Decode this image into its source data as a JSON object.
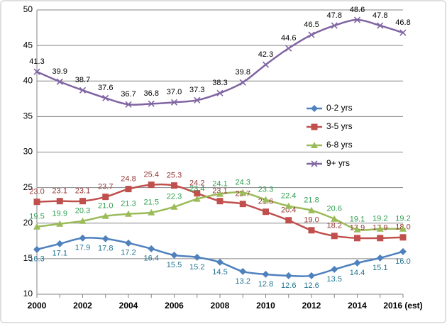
{
  "chart_data": {
    "type": "line",
    "categories": [
      "2000",
      null,
      "2002",
      null,
      "2004",
      null,
      "2006",
      null,
      "2008",
      null,
      "2010",
      null,
      "2012",
      null,
      "2014",
      null,
      "2016 (est)"
    ],
    "ylim": [
      10,
      50
    ],
    "yticks": [
      10,
      15,
      20,
      25,
      30,
      35,
      40,
      45,
      50
    ],
    "grid": true,
    "legend": "right",
    "series": [
      {
        "name": "0-2 yrs",
        "color": "#4F81BD",
        "marker": "diamond",
        "label_color": "#1F7391",
        "label_position": "below",
        "values": [
          16.3,
          17.1,
          17.9,
          17.8,
          17.2,
          16.4,
          15.5,
          15.2,
          14.5,
          13.2,
          12.8,
          12.6,
          12.6,
          13.5,
          14.4,
          15.1,
          16.0
        ],
        "value_labels": [
          "16.3",
          "17.1",
          "17.9",
          "17.8",
          "17.2",
          "16.4",
          "15.5",
          "15.2",
          "14.5",
          "13.2",
          "12.8",
          "12.6",
          "12.6",
          "13.5",
          "14.4",
          "15.1",
          "16.0"
        ]
      },
      {
        "name": "3-5 yrs",
        "color": "#C0504D",
        "marker": "square",
        "label_color": "#943634",
        "label_position": "above",
        "values": [
          23.0,
          23.1,
          23.1,
          23.7,
          24.8,
          25.4,
          25.3,
          24.2,
          23.1,
          22.7,
          21.6,
          20.4,
          19.0,
          18.2,
          17.9,
          17.9,
          18.0
        ],
        "value_labels": [
          "23.0",
          "23.1",
          "23.1",
          "23.7",
          "24.8",
          "25.4",
          "25.3",
          "24.2",
          "23.1",
          "22.7",
          "21.6",
          "20.4",
          "19.0",
          "18.2",
          "17.9",
          "17.9",
          "18.0"
        ]
      },
      {
        "name": "6-8 yrs",
        "color": "#9BBB59",
        "marker": "triangle",
        "label_color": "#2E9E4E",
        "label_position": "above",
        "values": [
          19.5,
          19.9,
          20.3,
          21.0,
          21.3,
          21.5,
          22.3,
          23.4,
          24.1,
          24.3,
          23.3,
          22.4,
          21.8,
          20.6,
          19.1,
          19.2,
          19.2
        ],
        "value_labels": [
          "19.5",
          "19.9",
          "20.3",
          "21.0",
          "21.3",
          "21.5",
          "22.3",
          "23.4",
          "24.1",
          "24.3",
          "23.3",
          "22.4",
          "21.8",
          "20.6",
          "19.1",
          "19.2",
          "19.2"
        ]
      },
      {
        "name": "9+ yrs",
        "color": "#8064A2",
        "marker": "x",
        "label_color": "#000000",
        "label_position": "above",
        "values": [
          41.3,
          39.9,
          38.7,
          37.6,
          36.7,
          36.8,
          37.0,
          37.3,
          38.3,
          39.8,
          42.3,
          44.6,
          46.5,
          47.8,
          48.6,
          47.8,
          46.8
        ],
        "value_labels": [
          "41.3",
          "39.9",
          "38.7",
          "37.6",
          "36.7",
          "36.8",
          "37.0",
          "37.3",
          "38.3",
          "39.8",
          "42.3",
          "44.6",
          "46.5",
          "47.8",
          "48.6",
          "47.8",
          "46.8"
        ]
      }
    ]
  }
}
